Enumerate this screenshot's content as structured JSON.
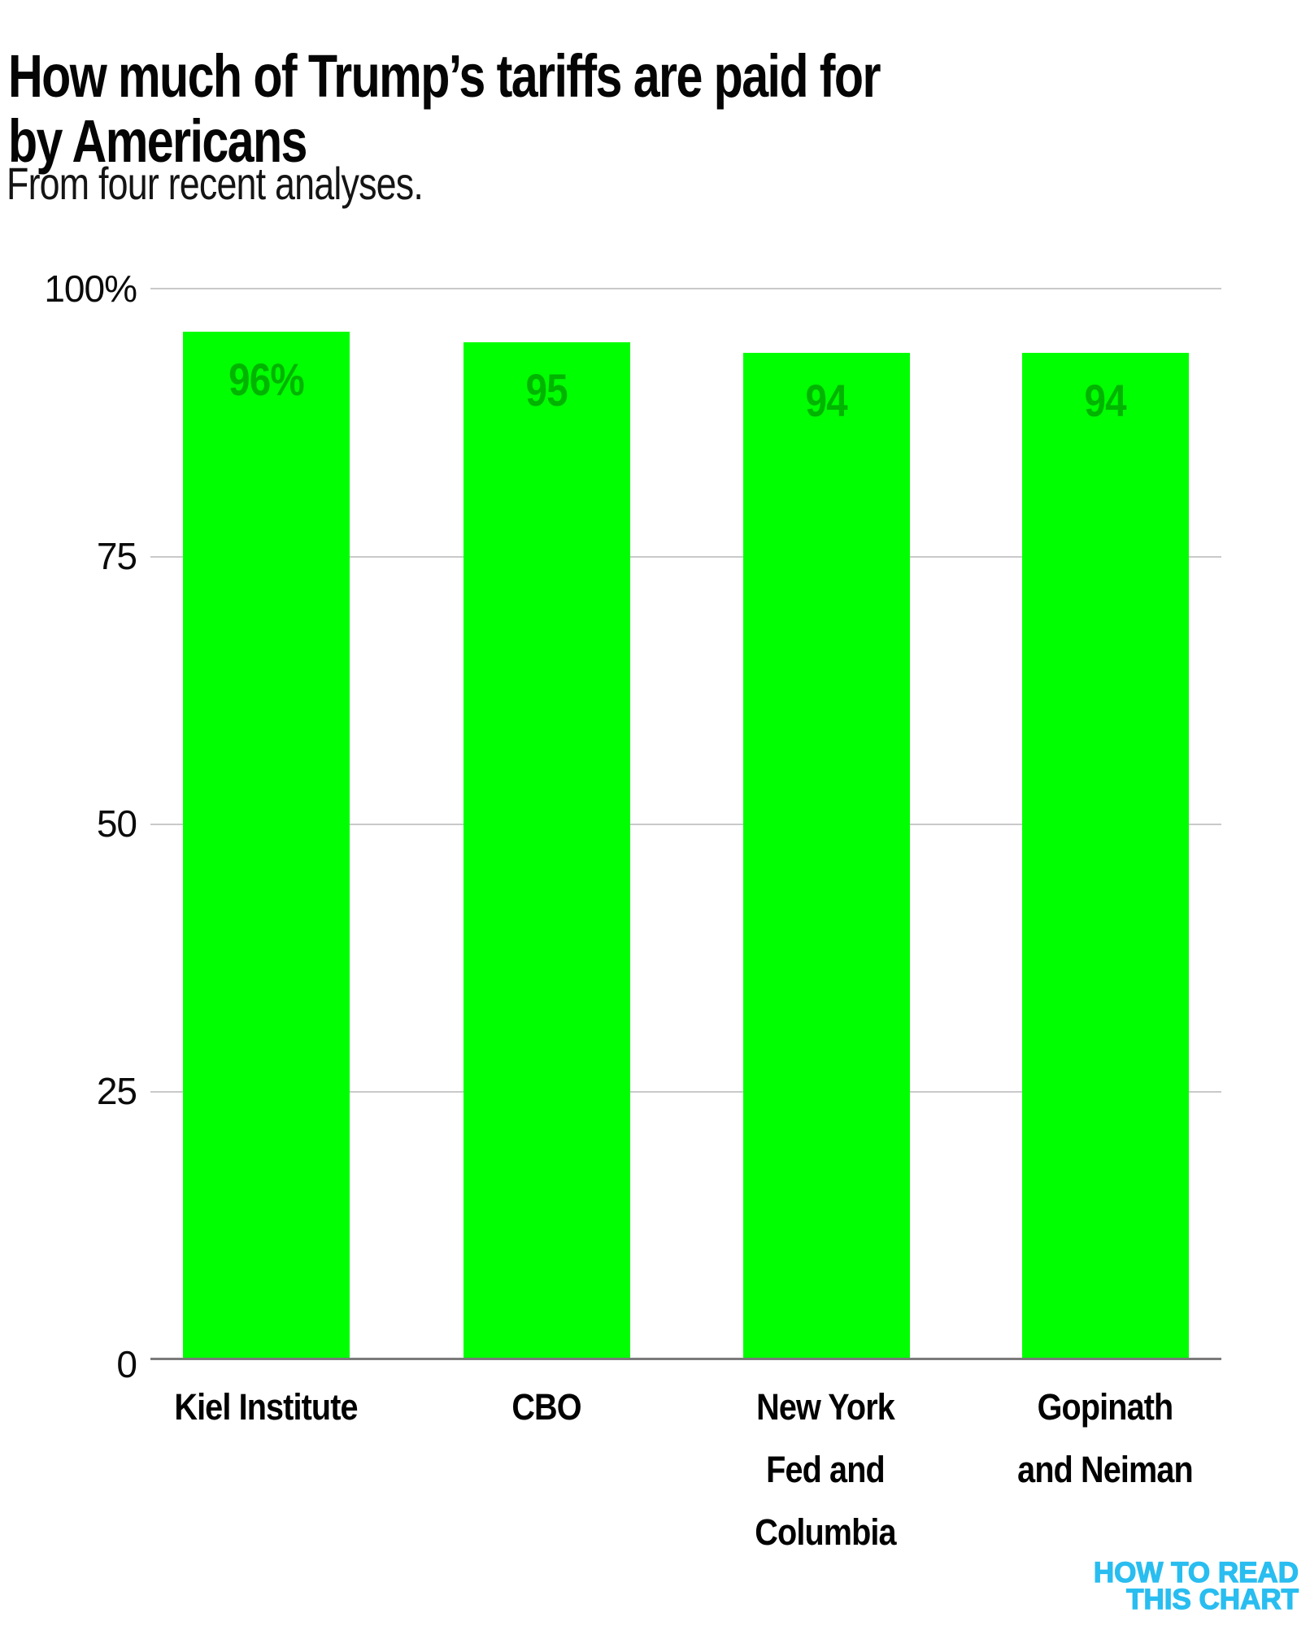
{
  "header": {
    "title_line1": "How much of Trump’s tariffs are paid for",
    "title_line2": "by Americans",
    "subtitle": "From four recent analyses."
  },
  "chart_data": {
    "type": "bar",
    "title": "How much of Trump’s tariffs are paid for by Americans",
    "subtitle": "From four recent analyses.",
    "categories": [
      "Kiel Institute",
      "CBO",
      "New York Fed and Columbia",
      "Gopinath and Neiman"
    ],
    "category_lines": [
      [
        "Kiel Institute"
      ],
      [
        "CBO"
      ],
      [
        "New York",
        "Fed and",
        "Columbia"
      ],
      [
        "Gopinath",
        "and Neiman"
      ]
    ],
    "values": [
      96,
      95,
      94,
      94
    ],
    "bar_labels": [
      "96%",
      "95",
      "94",
      "94"
    ],
    "xlabel": "",
    "ylabel": "",
    "ylim": [
      0,
      100
    ],
    "yticks": [
      0,
      25,
      50,
      75,
      100
    ],
    "ytick_labels": [
      "0",
      "25",
      "50",
      "75",
      "100%"
    ],
    "grid": true,
    "legend": false
  },
  "colors": {
    "bar": "#00ff00",
    "bar_label": "#00b400",
    "logo": "#29bdf0"
  },
  "footer": {
    "logo_line1": "HOW TO READ",
    "logo_line2": "THIS CHART"
  }
}
